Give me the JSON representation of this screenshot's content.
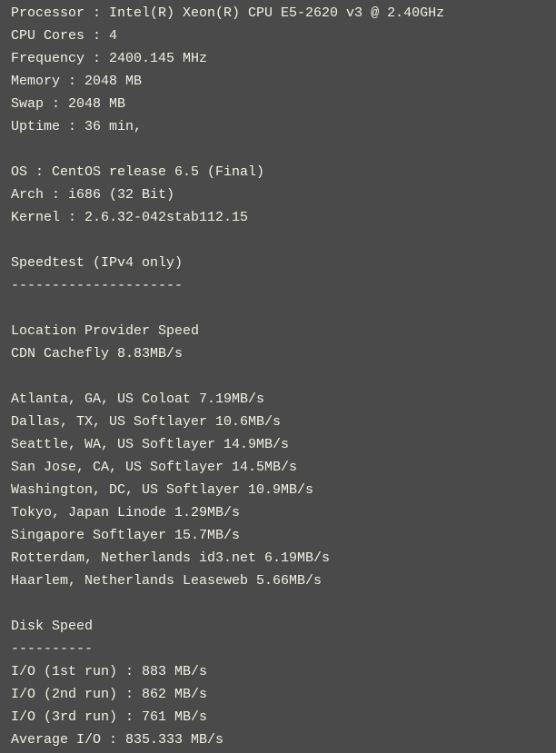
{
  "colors": {
    "background": "#4a4a4a",
    "text": "#f2f0e4"
  },
  "lines": [
    "Processor : Intel(R) Xeon(R) CPU E5-2620 v3 @ 2.40GHz",
    "CPU Cores : 4",
    "Frequency : 2400.145 MHz",
    "Memory : 2048 MB",
    "Swap : 2048 MB",
    "Uptime : 36 min,",
    "",
    "OS : CentOS release 6.5 (Final)",
    "Arch : i686 (32 Bit)",
    "Kernel : 2.6.32-042stab112.15",
    "",
    "Speedtest (IPv4 only)",
    "---------------------",
    "",
    "Location Provider Speed",
    "CDN Cachefly 8.83MB/s",
    "",
    "Atlanta, GA, US Coloat 7.19MB/s",
    "Dallas, TX, US Softlayer 10.6MB/s",
    "Seattle, WA, US Softlayer 14.9MB/s",
    "San Jose, CA, US Softlayer 14.5MB/s",
    "Washington, DC, US Softlayer 10.9MB/s",
    "Tokyo, Japan Linode 1.29MB/s",
    "Singapore Softlayer 15.7MB/s",
    "Rotterdam, Netherlands id3.net 6.19MB/s",
    "Haarlem, Netherlands Leaseweb 5.66MB/s",
    "",
    "Disk Speed",
    "----------",
    "I/O (1st run) : 883 MB/s",
    "I/O (2nd run) : 862 MB/s",
    "I/O (3rd run) : 761 MB/s",
    "Average I/O : 835.333 MB/s"
  ]
}
